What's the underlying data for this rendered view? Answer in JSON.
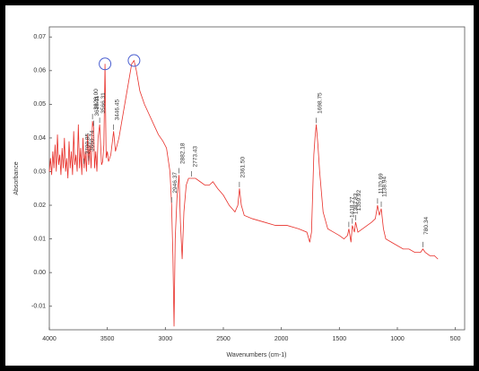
{
  "chart_data": {
    "type": "line",
    "ylabel": "Absorbance",
    "xlabel": "Wavenumbers (cm-1)",
    "xlim": [
      4000,
      420
    ],
    "xticks": [
      4000,
      3500,
      3000,
      2500,
      2000,
      1500,
      1000,
      500
    ],
    "ylim": [
      -0.017,
      0.073
    ],
    "yticks": [
      0.07,
      0.06,
      0.05,
      0.04,
      0.03,
      0.02,
      0.01,
      {
        "value": 0,
        "label": "0.00"
      },
      -0.01
    ],
    "x": [
      4000,
      3990,
      3980,
      3970,
      3960,
      3950,
      3940,
      3930,
      3920,
      3910,
      3900,
      3890,
      3880,
      3870,
      3860,
      3850,
      3840,
      3830,
      3820,
      3810,
      3800,
      3790,
      3780,
      3770,
      3760,
      3750,
      3740,
      3730,
      3720,
      3710,
      3700,
      3690,
      3680,
      3670,
      3660,
      3650,
      3640,
      3628,
      3618,
      3610,
      3600,
      3590,
      3580,
      3566,
      3550,
      3540,
      3530,
      3520,
      3510,
      3500,
      3490,
      3470,
      3446,
      3430,
      3400,
      3370,
      3340,
      3310,
      3290,
      3270,
      3250,
      3220,
      3180,
      3140,
      3100,
      3060,
      3020,
      2990,
      2960,
      2946,
      2935,
      2925,
      2915,
      2900,
      2882,
      2870,
      2855,
      2840,
      2820,
      2800,
      2773,
      2740,
      2700,
      2660,
      2620,
      2590,
      2550,
      2500,
      2450,
      2400,
      2375,
      2361,
      2345,
      2320,
      2250,
      2150,
      2050,
      1950,
      1850,
      1780,
      1755,
      1740,
      1720,
      1710,
      1699,
      1685,
      1670,
      1640,
      1600,
      1550,
      1500,
      1460,
      1430,
      1418,
      1400,
      1388,
      1370,
      1360,
      1340,
      1300,
      1260,
      1220,
      1190,
      1171,
      1155,
      1139,
      1120,
      1100,
      1050,
      1000,
      950,
      900,
      850,
      800,
      780,
      760,
      720,
      680,
      650
    ],
    "series": [
      {
        "name": "Spectrum",
        "color": "#e8302a",
        "values": [
          0.03,
          0.034,
          0.029,
          0.036,
          0.031,
          0.038,
          0.03,
          0.041,
          0.032,
          0.035,
          0.029,
          0.037,
          0.031,
          0.04,
          0.03,
          0.034,
          0.028,
          0.039,
          0.031,
          0.036,
          0.029,
          0.042,
          0.032,
          0.035,
          0.03,
          0.044,
          0.031,
          0.037,
          0.029,
          0.04,
          0.031,
          0.036,
          0.03,
          0.041,
          0.032,
          0.038,
          0.031,
          0.045,
          0.043,
          0.031,
          0.036,
          0.03,
          0.04,
          0.044,
          0.032,
          0.033,
          0.038,
          0.062,
          0.034,
          0.036,
          0.033,
          0.035,
          0.042,
          0.036,
          0.04,
          0.046,
          0.052,
          0.058,
          0.062,
          0.063,
          0.06,
          0.054,
          0.05,
          0.047,
          0.044,
          0.041,
          0.039,
          0.037,
          0.03,
          0.02,
          0.005,
          -0.016,
          0.01,
          0.022,
          0.029,
          0.015,
          0.004,
          0.018,
          0.026,
          0.028,
          0.028,
          0.028,
          0.027,
          0.026,
          0.026,
          0.027,
          0.025,
          0.023,
          0.02,
          0.018,
          0.02,
          0.025,
          0.02,
          0.017,
          0.016,
          0.015,
          0.014,
          0.014,
          0.013,
          0.012,
          0.009,
          0.012,
          0.035,
          0.04,
          0.044,
          0.038,
          0.03,
          0.018,
          0.013,
          0.012,
          0.011,
          0.01,
          0.011,
          0.013,
          0.009,
          0.014,
          0.012,
          0.015,
          0.012,
          0.013,
          0.014,
          0.015,
          0.016,
          0.02,
          0.017,
          0.019,
          0.013,
          0.01,
          0.009,
          0.008,
          0.007,
          0.007,
          0.006,
          0.006,
          0.007,
          0.006,
          0.005,
          0.005,
          0.004
        ]
      }
    ],
    "annotations": [
      {
        "text": "3700.85",
        "x": 3700.85
      },
      {
        "text": "3660.74",
        "x": 3660.74
      },
      {
        "text": "3628.00",
        "x": 3628.0
      },
      {
        "text": "3618.11",
        "x": 3618.11
      },
      {
        "text": "3566.31",
        "x": 3566.31
      },
      {
        "text": "3446.45",
        "x": 3446.45
      },
      {
        "text": "2946.37",
        "x": 2946.37
      },
      {
        "text": "2882.18",
        "x": 2882.18
      },
      {
        "text": "2773.43",
        "x": 2773.43
      },
      {
        "text": "2361.50",
        "x": 2361.5
      },
      {
        "text": "1698.75",
        "x": 1698.75
      },
      {
        "text": "1418.27",
        "x": 1418.27
      },
      {
        "text": "1387.83",
        "x": 1387.83
      },
      {
        "text": "1359.92",
        "x": 1359.92
      },
      {
        "text": "1170.69",
        "x": 1170.69
      },
      {
        "text": "1138.94",
        "x": 1138.94
      },
      {
        "text": "780.34",
        "x": 780.34
      }
    ],
    "circled": [
      {
        "x": 3520,
        "y": 0.062
      },
      {
        "x": 3270,
        "y": 0.063
      }
    ]
  }
}
